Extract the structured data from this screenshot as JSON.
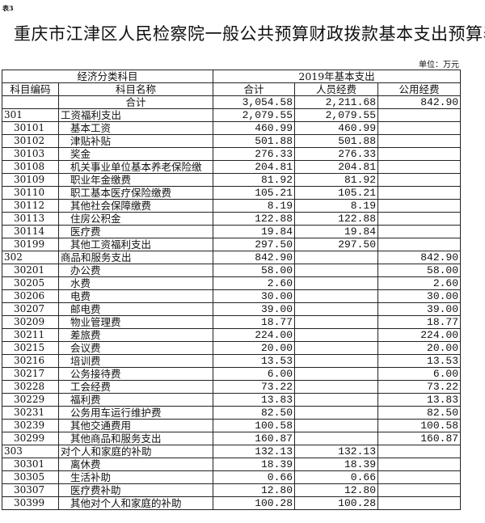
{
  "doc": {
    "tag": "表3",
    "title": "重庆市江津区人民检察院一般公共预算财政拨款基本支出预算表",
    "unit": "单位：万元"
  },
  "table": {
    "group_headers": [
      "经济分类科目",
      "2019年基本支出"
    ],
    "headers": [
      "科目编码",
      "科目名称",
      "合计",
      "人员经费",
      "公用经费"
    ],
    "total": {
      "name": "合计",
      "total": "3,054.58",
      "personnel": "2,211.68",
      "public": "842.90"
    },
    "rows": [
      {
        "level": 1,
        "code": "301",
        "name": "工资福利支出",
        "total": "2,079.55",
        "personnel": "2,079.55",
        "public": ""
      },
      {
        "level": 2,
        "code": "30101",
        "name": "基本工资",
        "total": "460.99",
        "personnel": "460.99",
        "public": ""
      },
      {
        "level": 2,
        "code": "30102",
        "name": "津贴补贴",
        "total": "501.88",
        "personnel": "501.88",
        "public": ""
      },
      {
        "level": 2,
        "code": "30103",
        "name": "奖金",
        "total": "276.33",
        "personnel": "276.33",
        "public": ""
      },
      {
        "level": 2,
        "code": "30108",
        "name": "机关事业单位基本养老保险缴",
        "total": "204.81",
        "personnel": "204.81",
        "public": ""
      },
      {
        "level": 2,
        "code": "30109",
        "name": "职业年金缴费",
        "total": "81.92",
        "personnel": "81.92",
        "public": ""
      },
      {
        "level": 2,
        "code": "30110",
        "name": "职工基本医疗保险缴费",
        "total": "105.21",
        "personnel": "105.21",
        "public": ""
      },
      {
        "level": 2,
        "code": "30112",
        "name": "其他社会保障缴费",
        "total": "8.19",
        "personnel": "8.19",
        "public": ""
      },
      {
        "level": 2,
        "code": "30113",
        "name": "住房公积金",
        "total": "122.88",
        "personnel": "122.88",
        "public": ""
      },
      {
        "level": 2,
        "code": "30114",
        "name": "医疗费",
        "total": "19.84",
        "personnel": "19.84",
        "public": ""
      },
      {
        "level": 2,
        "code": "30199",
        "name": "其他工资福利支出",
        "total": "297.50",
        "personnel": "297.50",
        "public": ""
      },
      {
        "level": 1,
        "code": "302",
        "name": "商品和服务支出",
        "total": "842.90",
        "personnel": "",
        "public": "842.90"
      },
      {
        "level": 2,
        "code": "30201",
        "name": "办公费",
        "total": "58.00",
        "personnel": "",
        "public": "58.00"
      },
      {
        "level": 2,
        "code": "30205",
        "name": "水费",
        "total": "2.60",
        "personnel": "",
        "public": "2.60"
      },
      {
        "level": 2,
        "code": "30206",
        "name": "电费",
        "total": "30.00",
        "personnel": "",
        "public": "30.00"
      },
      {
        "level": 2,
        "code": "30207",
        "name": "邮电费",
        "total": "39.00",
        "personnel": "",
        "public": "39.00"
      },
      {
        "level": 2,
        "code": "30209",
        "name": "物业管理费",
        "total": "18.77",
        "personnel": "",
        "public": "18.77"
      },
      {
        "level": 2,
        "code": "30211",
        "name": "差旅费",
        "total": "224.00",
        "personnel": "",
        "public": "224.00"
      },
      {
        "level": 2,
        "code": "30215",
        "name": "会议费",
        "total": "20.00",
        "personnel": "",
        "public": "20.00"
      },
      {
        "level": 2,
        "code": "30216",
        "name": "培训费",
        "total": "13.53",
        "personnel": "",
        "public": "13.53"
      },
      {
        "level": 2,
        "code": "30217",
        "name": "公务接待费",
        "total": "6.00",
        "personnel": "",
        "public": "6.00"
      },
      {
        "level": 2,
        "code": "30228",
        "name": "工会经费",
        "total": "73.22",
        "personnel": "",
        "public": "73.22"
      },
      {
        "level": 2,
        "code": "30229",
        "name": "福利费",
        "total": "13.83",
        "personnel": "",
        "public": "13.83"
      },
      {
        "level": 2,
        "code": "30231",
        "name": "公务用车运行维护费",
        "total": "82.50",
        "personnel": "",
        "public": "82.50"
      },
      {
        "level": 2,
        "code": "30239",
        "name": "其他交通费用",
        "total": "100.58",
        "personnel": "",
        "public": "100.58"
      },
      {
        "level": 2,
        "code": "30299",
        "name": "其他商品和服务支出",
        "total": "160.87",
        "personnel": "",
        "public": "160.87"
      },
      {
        "level": 1,
        "code": "303",
        "name": "对个人和家庭的补助",
        "total": "132.13",
        "personnel": "132.13",
        "public": ""
      },
      {
        "level": 2,
        "code": "30301",
        "name": "离休费",
        "total": "18.39",
        "personnel": "18.39",
        "public": ""
      },
      {
        "level": 2,
        "code": "30305",
        "name": "生活补助",
        "total": "0.66",
        "personnel": "0.66",
        "public": ""
      },
      {
        "level": 2,
        "code": "30307",
        "name": "医疗费补助",
        "total": "12.80",
        "personnel": "12.80",
        "public": ""
      },
      {
        "level": 2,
        "code": "30399",
        "name": "其他对个人和家庭的补助",
        "total": "100.28",
        "personnel": "100.28",
        "public": ""
      }
    ]
  }
}
